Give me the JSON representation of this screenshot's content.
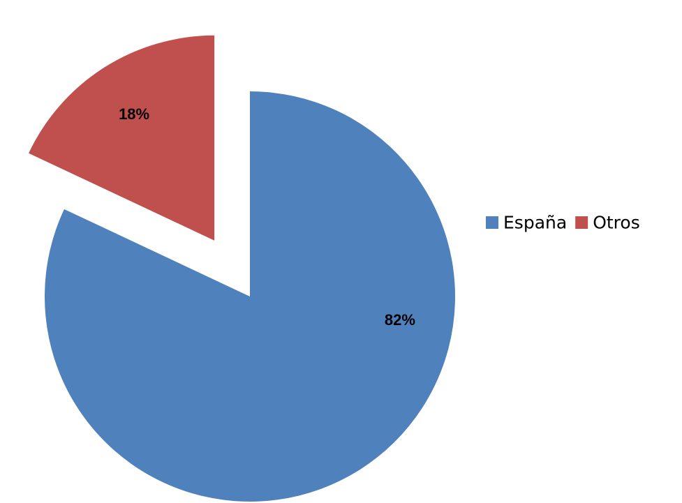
{
  "chart_data": {
    "type": "pie",
    "title": "",
    "categories": [
      "España",
      "Otros"
    ],
    "values": [
      82,
      18
    ],
    "value_labels": [
      "82%",
      "18%"
    ],
    "colors": [
      "#4F81BD",
      "#C0504D"
    ],
    "exploded": [
      "Otros"
    ],
    "start_angle": "12 o'clock, clockwise",
    "legend_position": "right"
  }
}
